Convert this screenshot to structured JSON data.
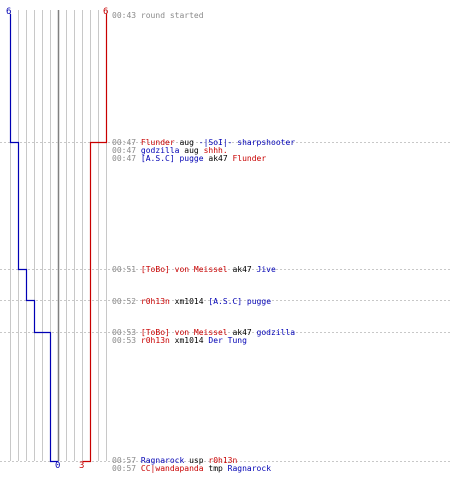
{
  "score_labels": {
    "top_left": "6",
    "top_right": "6",
    "bottom_left": "0",
    "bottom_right": "3"
  },
  "colors": {
    "red_team": "#c80000",
    "blue_team": "#0000b4",
    "grid": "#c8c8c8",
    "center_line": "#808080",
    "time": "#8a8a8a",
    "dotted": "#c8c8c8"
  },
  "events": [
    {
      "time": "00:43",
      "type": "system",
      "text": "round started"
    },
    {
      "time": "00:47",
      "type": "kill",
      "killer": "Flunder",
      "killer_team": "red",
      "weapon": "aug",
      "victim": "-|SoI|- sharpshooter",
      "victim_team": "blue"
    },
    {
      "time": "00:47",
      "type": "chat",
      "killer": "godzilla",
      "killer_team": "blue",
      "weapon": "aug",
      "victim": "shhh.",
      "victim_team": "red"
    },
    {
      "time": "00:47",
      "type": "kill",
      "killer": "[A.S.C] pugge",
      "killer_team": "blue",
      "weapon": "ak47",
      "victim": "Flunder",
      "victim_team": "red"
    },
    {
      "time": "00:51",
      "type": "kill",
      "killer": "[ToBo] von Meissel",
      "killer_team": "red",
      "weapon": "ak47",
      "victim": "Jive",
      "victim_team": "blue"
    },
    {
      "time": "00:52",
      "type": "kill",
      "killer": "r0h13n",
      "killer_team": "red",
      "weapon": "xm1014",
      "victim": "[A.S.C] pugge",
      "victim_team": "blue"
    },
    {
      "time": "00:53",
      "type": "kill",
      "killer": "[ToBo] von Meissel",
      "killer_team": "red",
      "weapon": "ak47",
      "victim": "godzilla",
      "victim_team": "blue"
    },
    {
      "time": "00:53",
      "type": "kill",
      "killer": "r0h13n",
      "killer_team": "red",
      "weapon": "xm1014",
      "victim": "Der Tung",
      "victim_team": "blue"
    },
    {
      "time": "00:57",
      "type": "kill",
      "killer": "Ragnarock",
      "killer_team": "blue",
      "weapon": "usp",
      "victim": "r0h13n",
      "victim_team": "red"
    },
    {
      "time": "00:57",
      "type": "kill",
      "killer": "CC|wandapanda",
      "killer_team": "red",
      "weapon": "tmp",
      "victim": "Ragnarock",
      "victim_team": "blue"
    }
  ]
}
